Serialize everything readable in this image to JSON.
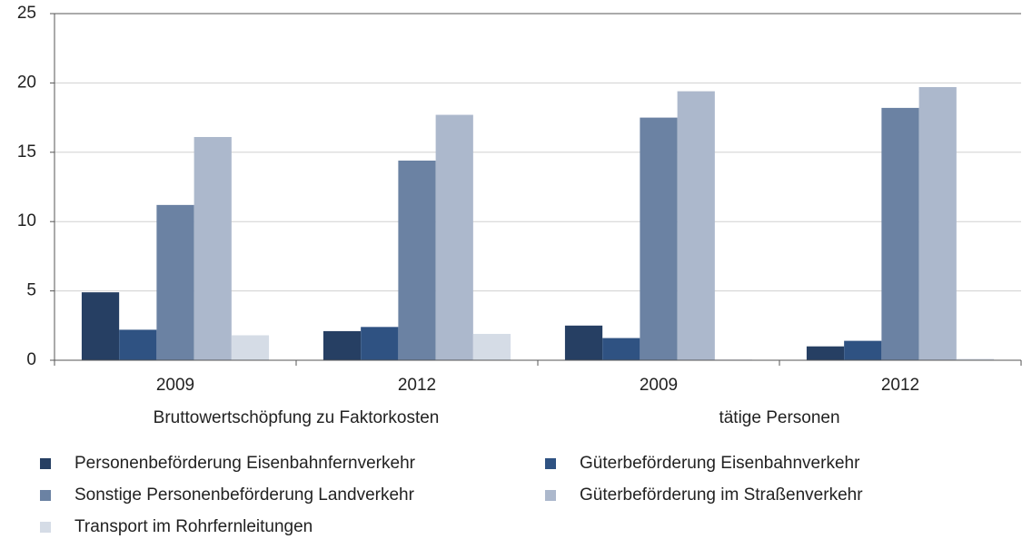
{
  "chart_data": {
    "type": "bar",
    "categories": [
      "2009",
      "2012",
      "2009",
      "2012"
    ],
    "group_labels": [
      "Bruttowertschöpfung zu Faktorkosten",
      "tätige Personen"
    ],
    "series": [
      {
        "name": "Personenbeförderung Eisenbahnfernverkehr",
        "color": "#263f63",
        "values": [
          4.9,
          2.1,
          2.5,
          1.0
        ]
      },
      {
        "name": "Güterbeförderung Eisenbahnverkehr",
        "color": "#2f5282",
        "values": [
          2.2,
          2.4,
          1.6,
          1.4
        ]
      },
      {
        "name": "Sonstige Personenbeförderung Landverkehr",
        "color": "#6b82a3",
        "values": [
          11.2,
          14.4,
          17.5,
          18.2
        ]
      },
      {
        "name": "Güterbeförderung im Straßenverkehr",
        "color": "#acb8cc",
        "values": [
          16.1,
          17.7,
          19.4,
          19.7
        ]
      },
      {
        "name": "Transport im Rohrfernleitungen",
        "color": "#d5dce6",
        "values": [
          1.8,
          1.9,
          0.05,
          0.1
        ]
      }
    ],
    "ylim": [
      0,
      25
    ],
    "yticks": [
      0,
      5,
      10,
      15,
      20,
      25
    ],
    "grid": true,
    "legend": "bottom"
  }
}
